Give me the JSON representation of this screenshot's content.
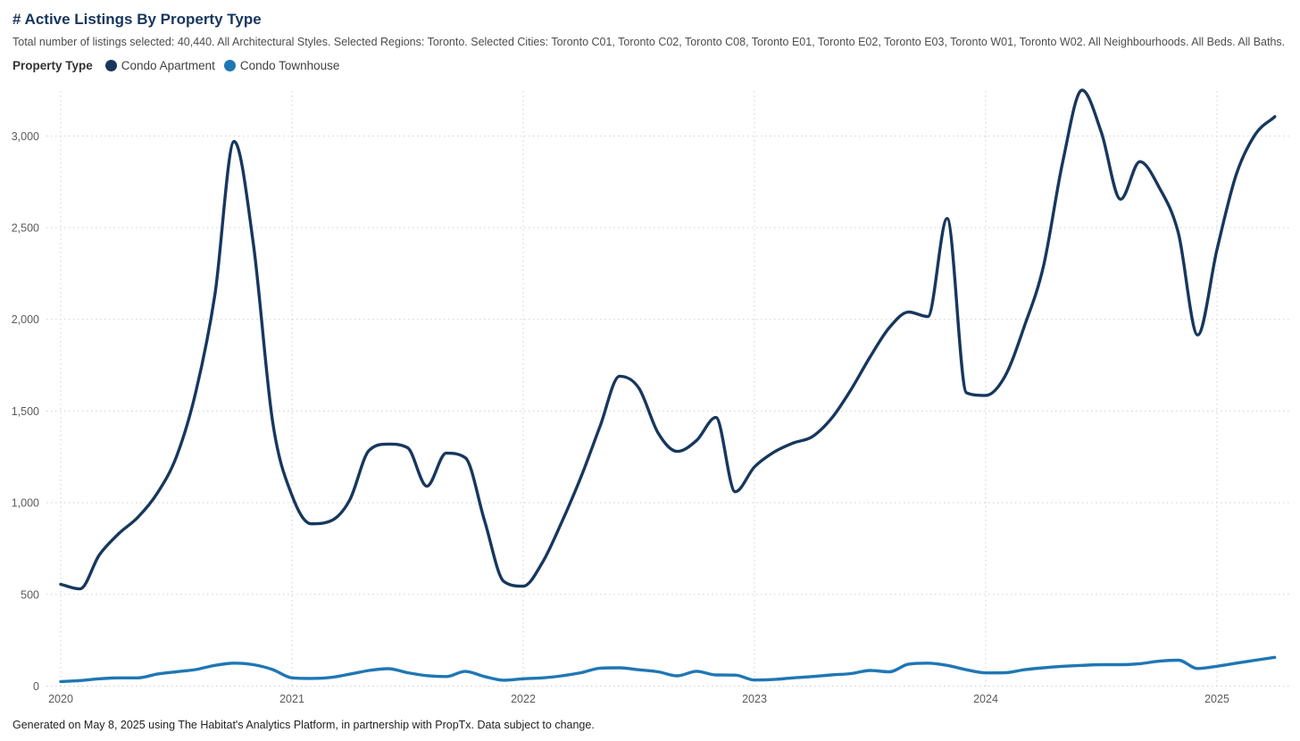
{
  "header": {
    "title": "# Active Listings By Property Type",
    "subtitle": "Total number of listings selected: 40,440. All Architectural Styles. Selected Regions: Toronto. Selected Cities: Toronto C01, Toronto C02, Toronto C08, Toronto E01, Toronto E02, Toronto E03, Toronto W01, Toronto W02. All Neighbourhoods. All Beds. All Baths."
  },
  "legend": {
    "label": "Property Type",
    "items": [
      {
        "name": "Condo Apartment",
        "color": "#17375e"
      },
      {
        "name": "Condo Townhouse",
        "color": "#1f77b4"
      }
    ]
  },
  "footer": {
    "text": "Generated on May 8, 2025 using The Habitat's Analytics Platform, in partnership with PropTx. Data subject to change."
  },
  "chart_data": {
    "type": "line",
    "title": "# Active Listings By Property Type",
    "xlabel": "",
    "ylabel": "",
    "x_start_month": "2020-01",
    "x_end_month": "2025-04",
    "months_per_point": 1,
    "x_tick_labels": [
      "2020",
      "2021",
      "2022",
      "2023",
      "2024",
      "2025"
    ],
    "y_ticks": [
      0,
      500,
      1000,
      1500,
      2000,
      2500,
      3000
    ],
    "y_tick_labels": [
      "0",
      "500",
      "1,000",
      "1,500",
      "2,000",
      "2,500",
      "3,000"
    ],
    "ylim": [
      0,
      3300
    ],
    "grid": "dotted",
    "legend_position": "top-left",
    "series": [
      {
        "name": "Condo Apartment",
        "color": "#17375e",
        "values": [
          555,
          530,
          715,
          830,
          920,
          1050,
          1250,
          1600,
          2135,
          2970,
          2410,
          1440,
          1040,
          885,
          900,
          1015,
          1285,
          1320,
          1300,
          1090,
          1270,
          1245,
          900,
          570,
          545,
          675,
          895,
          1140,
          1420,
          1690,
          1625,
          1380,
          1280,
          1340,
          1465,
          1060,
          1195,
          1275,
          1325,
          1360,
          1460,
          1615,
          1795,
          1955,
          2040,
          2015,
          2550,
          1600,
          1585,
          1690,
          1960,
          2290,
          2860,
          3250,
          3020,
          2655,
          2860,
          2720,
          2470,
          1915,
          2380,
          2790,
          3010,
          3105
        ]
      },
      {
        "name": "Condo Townhouse",
        "color": "#1f77b4",
        "values": [
          25,
          30,
          40,
          45,
          45,
          65,
          78,
          90,
          113,
          125,
          117,
          90,
          45,
          42,
          47,
          65,
          85,
          95,
          73,
          57,
          52,
          80,
          52,
          32,
          40,
          45,
          56,
          73,
          98,
          100,
          89,
          78,
          56,
          81,
          61,
          60,
          33,
          36,
          45,
          52,
          61,
          68,
          85,
          78,
          120,
          125,
          113,
          89,
          72,
          73,
          89,
          100,
          108,
          113,
          117,
          117,
          122,
          136,
          141,
          96,
          108,
          125,
          141,
          157
        ]
      }
    ]
  }
}
